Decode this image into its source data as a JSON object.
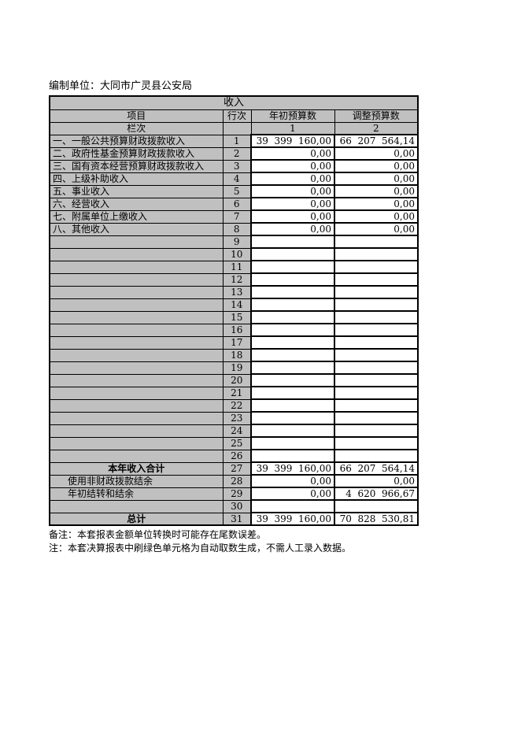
{
  "page": {
    "unit_label": "编制单位：大同市广灵县公安局"
  },
  "table": {
    "title": "收入",
    "headers": {
      "item": "项目",
      "row_no": "行次",
      "initial_budget": "年初预算数",
      "adjusted_budget": "调整预算数"
    },
    "column_index_row": {
      "label": "栏次",
      "blank": "",
      "col1": "1",
      "col2": "2"
    },
    "rows": [
      {
        "item": "一、一般公共预算财政拨款收入",
        "no": "1",
        "initial": "39  399  160,00",
        "adjusted": "66  207  564,14"
      },
      {
        "item": "二、政府性基金预算财政拨款收入",
        "no": "2",
        "initial": "0,00",
        "adjusted": "0,00"
      },
      {
        "item": "三、国有资本经营预算财政拨款收入",
        "no": "3",
        "initial": "0,00",
        "adjusted": "0,00"
      },
      {
        "item": "四、上级补助收入",
        "no": "4",
        "initial": "0,00",
        "adjusted": "0,00"
      },
      {
        "item": "五、事业收入",
        "no": "5",
        "initial": "0,00",
        "adjusted": "0,00"
      },
      {
        "item": "六、经营收入",
        "no": "6",
        "initial": "0,00",
        "adjusted": "0,00"
      },
      {
        "item": "七、附属单位上缴收入",
        "no": "7",
        "initial": "0,00",
        "adjusted": "0,00"
      },
      {
        "item": "八、其他收入",
        "no": "8",
        "initial": "0,00",
        "adjusted": "0,00"
      },
      {
        "item": "",
        "no": "9",
        "initial": "",
        "adjusted": ""
      },
      {
        "item": "",
        "no": "10",
        "initial": "",
        "adjusted": ""
      },
      {
        "item": "",
        "no": "11",
        "initial": "",
        "adjusted": ""
      },
      {
        "item": "",
        "no": "12",
        "initial": "",
        "adjusted": ""
      },
      {
        "item": "",
        "no": "13",
        "initial": "",
        "adjusted": ""
      },
      {
        "item": "",
        "no": "14",
        "initial": "",
        "adjusted": ""
      },
      {
        "item": "",
        "no": "15",
        "initial": "",
        "adjusted": ""
      },
      {
        "item": "",
        "no": "16",
        "initial": "",
        "adjusted": ""
      },
      {
        "item": "",
        "no": "17",
        "initial": "",
        "adjusted": ""
      },
      {
        "item": "",
        "no": "18",
        "initial": "",
        "adjusted": ""
      },
      {
        "item": "",
        "no": "19",
        "initial": "",
        "adjusted": ""
      },
      {
        "item": "",
        "no": "20",
        "initial": "",
        "adjusted": ""
      },
      {
        "item": "",
        "no": "21",
        "initial": "",
        "adjusted": ""
      },
      {
        "item": "",
        "no": "22",
        "initial": "",
        "adjusted": ""
      },
      {
        "item": "",
        "no": "23",
        "initial": "",
        "adjusted": ""
      },
      {
        "item": "",
        "no": "24",
        "initial": "",
        "adjusted": ""
      },
      {
        "item": "",
        "no": "25",
        "initial": "",
        "adjusted": ""
      },
      {
        "item": "",
        "no": "26",
        "initial": "",
        "adjusted": ""
      },
      {
        "item": "本年收入合计",
        "no": "27",
        "initial": "39  399  160,00",
        "adjusted": "66  207  564,14",
        "bold_center": true
      },
      {
        "item": "使用非财政拨款结余",
        "no": "28",
        "initial": "0,00",
        "adjusted": "0,00",
        "indent": true
      },
      {
        "item": "年初结转和结余",
        "no": "29",
        "initial": "0,00",
        "adjusted": "4  620  966,67",
        "indent": true
      },
      {
        "item": "",
        "no": "30",
        "initial": "",
        "adjusted": ""
      },
      {
        "item": "总计",
        "no": "31",
        "initial": "39  399  160,00",
        "adjusted": "70  828  530,81",
        "bold_center": true
      }
    ]
  },
  "notes": [
    "备注：本套报表金额单位转换时可能存在尾数误差。",
    "注：本套决算报表中刷绿色单元格为自动取数生成，不需人工录入数据。"
  ],
  "colors": {
    "header_fill": "#c0c0c0",
    "cell_fill": "#ffffff",
    "border": "#000000"
  }
}
